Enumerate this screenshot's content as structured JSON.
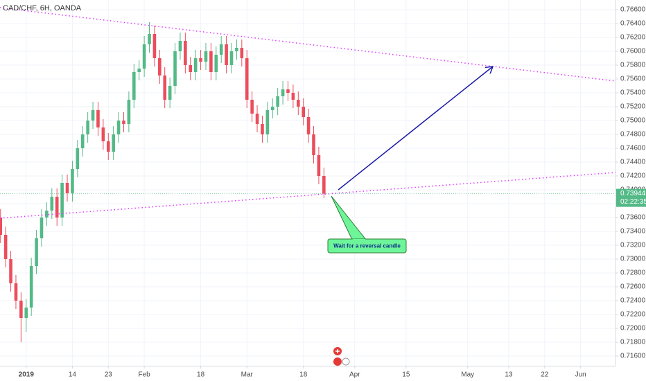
{
  "chart_data": {
    "type": "candlestick",
    "title": "CAD/CHF, 6H, OANDA",
    "x": [
      -5,
      -4,
      -3,
      -2,
      -1,
      0,
      1,
      2,
      3,
      4,
      5,
      6,
      7,
      8,
      9,
      10,
      11,
      12,
      13,
      14,
      15,
      16,
      17,
      18,
      19,
      20,
      21,
      22,
      23,
      24,
      25,
      26,
      27,
      28,
      29,
      30,
      31,
      32,
      33,
      34,
      35,
      36,
      37,
      38,
      39,
      40,
      41,
      42,
      43,
      44,
      45,
      46,
      47,
      48,
      49,
      50,
      51,
      52,
      53,
      54,
      55,
      56,
      57,
      58
    ],
    "open": [
      0.736,
      0.7335,
      0.73,
      0.7265,
      0.724,
      0.7215,
      0.723,
      0.729,
      0.733,
      0.736,
      0.737,
      0.739,
      0.736,
      0.741,
      0.7395,
      0.743,
      0.746,
      0.748,
      0.75,
      0.7515,
      0.749,
      0.747,
      0.7455,
      0.748,
      0.75,
      0.7495,
      0.753,
      0.757,
      0.7575,
      0.761,
      0.7625,
      0.759,
      0.7565,
      0.753,
      0.755,
      0.76,
      0.7615,
      0.758,
      0.757,
      0.759,
      0.7585,
      0.76,
      0.757,
      0.7595,
      0.761,
      0.758,
      0.76,
      0.7605,
      0.759,
      0.753,
      0.751,
      0.7495,
      0.748,
      0.7515,
      0.752,
      0.7535,
      0.7545,
      0.754,
      0.753,
      0.752,
      0.7505,
      0.748,
      0.745,
      0.742
    ],
    "high": [
      0.7372,
      0.7347,
      0.7312,
      0.7277,
      0.7252,
      0.7242,
      0.7302,
      0.7342,
      0.7372,
      0.7382,
      0.7402,
      0.7402,
      0.7422,
      0.7422,
      0.7442,
      0.7472,
      0.7492,
      0.7512,
      0.7527,
      0.7527,
      0.7502,
      0.7482,
      0.7492,
      0.7512,
      0.7512,
      0.7542,
      0.7582,
      0.7587,
      0.7622,
      0.7642,
      0.7637,
      0.7602,
      0.7577,
      0.7562,
      0.7612,
      0.7627,
      0.7627,
      0.7592,
      0.7602,
      0.7602,
      0.7612,
      0.7612,
      0.7607,
      0.7622,
      0.7622,
      0.7612,
      0.7617,
      0.7617,
      0.7602,
      0.7542,
      0.7522,
      0.7507,
      0.7527,
      0.7532,
      0.7547,
      0.7557,
      0.7557,
      0.7552,
      0.7542,
      0.7532,
      0.7517,
      0.7492,
      0.7462,
      0.7432
    ],
    "low": [
      0.7323,
      0.7288,
      0.7253,
      0.7228,
      0.718,
      0.7195,
      0.7218,
      0.7278,
      0.7318,
      0.7348,
      0.7358,
      0.7348,
      0.7348,
      0.7383,
      0.7383,
      0.7418,
      0.7448,
      0.7468,
      0.7488,
      0.7478,
      0.7458,
      0.7443,
      0.7443,
      0.7468,
      0.7483,
      0.7483,
      0.7518,
      0.7558,
      0.7563,
      0.7598,
      0.7578,
      0.7553,
      0.7518,
      0.7518,
      0.7538,
      0.7588,
      0.7568,
      0.7558,
      0.7558,
      0.7573,
      0.7573,
      0.7558,
      0.7558,
      0.7583,
      0.7568,
      0.7568,
      0.7588,
      0.7578,
      0.7518,
      0.7498,
      0.7483,
      0.7468,
      0.7468,
      0.7503,
      0.7508,
      0.7523,
      0.7528,
      0.7518,
      0.7508,
      0.7493,
      0.7468,
      0.7438,
      0.7408,
      0.7388
    ],
    "close": [
      0.7335,
      0.73,
      0.7265,
      0.724,
      0.7215,
      0.723,
      0.729,
      0.733,
      0.736,
      0.737,
      0.739,
      0.736,
      0.741,
      0.7395,
      0.743,
      0.746,
      0.748,
      0.75,
      0.7515,
      0.749,
      0.747,
      0.7455,
      0.748,
      0.75,
      0.7495,
      0.753,
      0.757,
      0.7575,
      0.761,
      0.7625,
      0.759,
      0.7565,
      0.753,
      0.755,
      0.76,
      0.7615,
      0.758,
      0.757,
      0.759,
      0.7585,
      0.76,
      0.757,
      0.7595,
      0.761,
      0.758,
      0.76,
      0.7605,
      0.759,
      0.753,
      0.751,
      0.7495,
      0.748,
      0.7515,
      0.752,
      0.7535,
      0.7545,
      0.754,
      0.753,
      0.752,
      0.7505,
      0.748,
      0.745,
      0.742,
      0.73944
    ],
    "up_color": "#53b987",
    "down_color": "#eb4d5c",
    "countdown": "02:22:35",
    "xlim": [
      -5.1,
      114.8
    ],
    "ylim": [
      0.7146,
      0.7674
    ],
    "xticks": [
      {
        "value": 0,
        "label": "2019"
      },
      {
        "value": 9,
        "label": "14"
      },
      {
        "value": 16,
        "label": "23"
      },
      {
        "value": 23,
        "label": "Feb"
      },
      {
        "value": 34,
        "label": "18"
      },
      {
        "value": 43,
        "label": "Mar"
      },
      {
        "value": 54,
        "label": "18"
      },
      {
        "value": 64,
        "label": "Apr"
      },
      {
        "value": 74,
        "label": "15"
      },
      {
        "value": 86,
        "label": "May"
      },
      {
        "value": 94,
        "label": "13"
      },
      {
        "value": 101,
        "label": "22"
      },
      {
        "value": 108,
        "label": "Jun"
      }
    ],
    "yticks": [
      {
        "value": 0.716,
        "label": "0.71600"
      },
      {
        "value": 0.718,
        "label": "0.71800"
      },
      {
        "value": 0.72,
        "label": "0.72000"
      },
      {
        "value": 0.722,
        "label": "0.72200"
      },
      {
        "value": 0.724,
        "label": "0.72400"
      },
      {
        "value": 0.726,
        "label": "0.72600"
      },
      {
        "value": 0.728,
        "label": "0.72800"
      },
      {
        "value": 0.73,
        "label": "0.73000"
      },
      {
        "value": 0.732,
        "label": "0.73200"
      },
      {
        "value": 0.734,
        "label": "0.73400"
      },
      {
        "value": 0.736,
        "label": "0.73600"
      },
      {
        "value": 0.738,
        "label": "0.73800"
      },
      {
        "value": 0.74,
        "label": "0.74000"
      },
      {
        "value": 0.742,
        "label": "0.74200"
      },
      {
        "value": 0.744,
        "label": "0.74400"
      },
      {
        "value": 0.746,
        "label": "0.74600"
      },
      {
        "value": 0.748,
        "label": "0.74800"
      },
      {
        "value": 0.75,
        "label": "0.75000"
      },
      {
        "value": 0.752,
        "label": "0.75200"
      },
      {
        "value": 0.754,
        "label": "0.75400"
      },
      {
        "value": 0.756,
        "label": "0.75600"
      },
      {
        "value": 0.758,
        "label": "0.75800"
      },
      {
        "value": 0.76,
        "label": "0.76000"
      },
      {
        "value": 0.762,
        "label": "0.76200"
      },
      {
        "value": 0.764,
        "label": "0.76400"
      },
      {
        "value": 0.766,
        "label": "0.76600"
      }
    ],
    "grid": true,
    "trendlines": [
      {
        "x": [
          -5.1,
          114.8
        ],
        "y": [
          0.7663,
          0.7557
        ],
        "color": "#e040fb"
      },
      {
        "x": [
          -5.1,
          114.8
        ],
        "y": [
          0.7359,
          0.7425
        ],
        "color": "#e040fb"
      }
    ],
    "arrow": {
      "x": [
        60.8,
        90.9
      ],
      "y": [
        0.74,
        0.7578
      ],
      "color": "#1a1aa8"
    },
    "annotation": "Wait for a reversal candle"
  }
}
